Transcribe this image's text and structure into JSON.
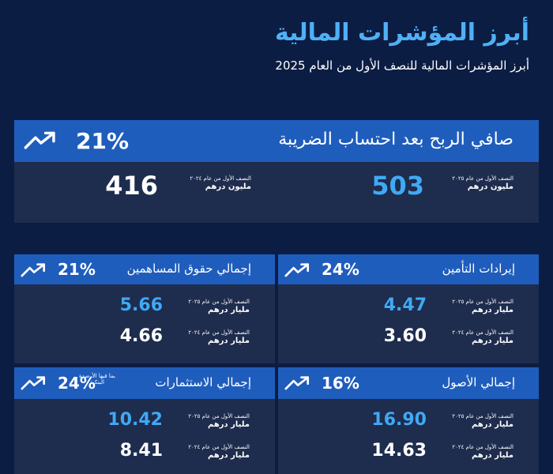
{
  "header": {
    "title": "أبرز المؤشرات المالية",
    "subtitle": "أبرز المؤشرات المالية للنصف الأول من العام 2025"
  },
  "cards": [
    {
      "title": "صافي الربح بعد احتساب الضريبة",
      "change": "21%",
      "current": {
        "period": "النصف الأول من عام ٢٠٢٥",
        "unit": "مليون درهم",
        "value": "503"
      },
      "previous": {
        "period": "النصف الأول من عام ٢٠٢٤",
        "unit": "مليون درهم",
        "value": "416"
      }
    },
    {
      "title": "إيرادات التأمين",
      "change": "24%",
      "current": {
        "period": "النصف الأول من عام ٢٠٢٥",
        "unit": "مليار درهم",
        "value": "4.47"
      },
      "previous": {
        "period": "النصف الأول من عام ٢٠٢٤",
        "unit": "مليار درهم",
        "value": "3.60"
      }
    },
    {
      "title": "إجمالي حقوق المساهمين",
      "change": "21%",
      "current": {
        "period": "النصف الأول من عام ٢٠٢٥",
        "unit": "مليار درهم",
        "value": "5.66"
      },
      "previous": {
        "period": "النصف الأول من عام ٢٠٢٤",
        "unit": "مليار درهم",
        "value": "4.66"
      }
    },
    {
      "title": "إجمالي الأصول",
      "change": "16%",
      "current": {
        "period": "النصف الأول من عام ٢٠٢٥",
        "unit": "مليار درهم",
        "value": "16.90"
      },
      "previous": {
        "period": "النصف الأول من عام ٢٠٢٤",
        "unit": "مليار درهم",
        "value": "14.63"
      }
    },
    {
      "title": "إجمالي الاستثمارات",
      "note": "بما فيها الأرصدة البنكية",
      "change": "24%",
      "current": {
        "period": "النصف الأول من عام ٢٠٢٥",
        "unit": "مليار درهم",
        "value": "10.42"
      },
      "previous": {
        "period": "النصف الأول من عام ٢٠٢٤",
        "unit": "مليار درهم",
        "value": "8.41"
      }
    }
  ]
}
